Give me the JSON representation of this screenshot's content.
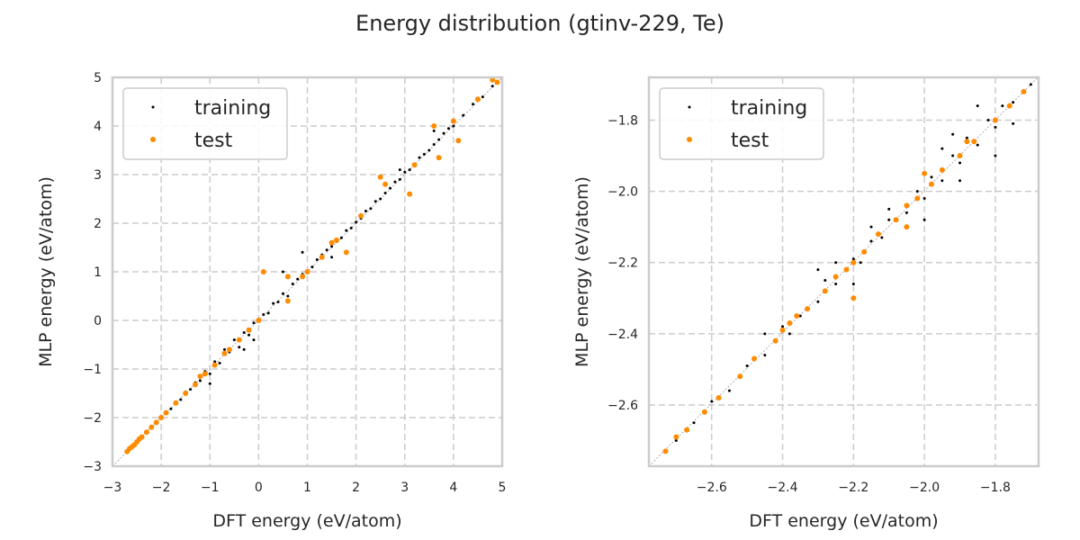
{
  "title": "Energy distribution (gtinv-229, Te)",
  "colors": {
    "training": "#000000",
    "test": "#ff8c00",
    "grid": "#cccccc",
    "frame": "#cccccc"
  },
  "chart_data": [
    {
      "type": "scatter",
      "xlabel": "DFT energy (eV/atom)",
      "ylabel": "MLP energy (eV/atom)",
      "xlim": [
        -3,
        5
      ],
      "ylim": [
        -3,
        5
      ],
      "xticks": [
        -3,
        -2,
        -1,
        0,
        1,
        2,
        3,
        4,
        5
      ],
      "yticks": [
        -3,
        -2,
        -1,
        0,
        1,
        2,
        3,
        4,
        5
      ],
      "xtick_labels": [
        "−3",
        "−2",
        "−1",
        "0",
        "1",
        "2",
        "3",
        "4",
        "5"
      ],
      "ytick_labels": [
        "−3",
        "−2",
        "−1",
        "0",
        "1",
        "2",
        "3",
        "4",
        "5"
      ],
      "grid": true,
      "legend": "upper-left",
      "series": [
        {
          "name": "training",
          "points": [
            [
              -2.7,
              -2.7
            ],
            [
              -2.6,
              -2.62
            ],
            [
              -2.5,
              -2.48
            ],
            [
              -2.4,
              -2.41
            ],
            [
              -2.3,
              -2.28
            ],
            [
              -2.2,
              -2.22
            ],
            [
              -2.1,
              -2.08
            ],
            [
              -2.0,
              -2.02
            ],
            [
              -1.9,
              -1.88
            ],
            [
              -1.8,
              -1.82
            ],
            [
              -1.7,
              -1.68
            ],
            [
              -1.6,
              -1.63
            ],
            [
              -1.5,
              -1.47
            ],
            [
              -1.4,
              -1.42
            ],
            [
              -1.3,
              -1.28
            ],
            [
              -1.2,
              -1.24
            ],
            [
              -1.1,
              -1.05
            ],
            [
              -1.0,
              -1.1
            ],
            [
              -0.9,
              -0.85
            ],
            [
              -0.8,
              -0.88
            ],
            [
              -0.7,
              -0.6
            ],
            [
              -0.6,
              -0.65
            ],
            [
              -0.5,
              -0.4
            ],
            [
              -0.4,
              -0.55
            ],
            [
              -0.3,
              -0.25
            ],
            [
              -0.2,
              -0.3
            ],
            [
              -0.1,
              -0.05
            ],
            [
              0.0,
              0.02
            ],
            [
              0.1,
              0.12
            ],
            [
              0.2,
              0.15
            ],
            [
              0.3,
              0.35
            ],
            [
              0.4,
              0.38
            ],
            [
              0.5,
              0.55
            ],
            [
              0.6,
              0.5
            ],
            [
              0.7,
              0.75
            ],
            [
              0.8,
              0.85
            ],
            [
              0.5,
              1.0
            ],
            [
              0.9,
              0.95
            ],
            [
              1.0,
              1.02
            ],
            [
              1.1,
              1.1
            ],
            [
              1.2,
              1.25
            ],
            [
              1.3,
              1.35
            ],
            [
              1.4,
              1.45
            ],
            [
              1.5,
              1.52
            ],
            [
              1.6,
              1.62
            ],
            [
              1.7,
              1.7
            ],
            [
              1.8,
              1.85
            ],
            [
              1.9,
              1.9
            ],
            [
              2.0,
              2.02
            ],
            [
              2.1,
              2.1
            ],
            [
              2.2,
              2.25
            ],
            [
              2.3,
              2.3
            ],
            [
              2.4,
              2.45
            ],
            [
              2.5,
              2.5
            ],
            [
              2.6,
              2.62
            ],
            [
              2.7,
              2.72
            ],
            [
              2.8,
              2.85
            ],
            [
              2.9,
              2.9
            ],
            [
              3.0,
              3.05
            ],
            [
              3.1,
              3.1
            ],
            [
              3.2,
              3.22
            ],
            [
              3.3,
              3.35
            ],
            [
              3.4,
              3.42
            ],
            [
              3.5,
              3.5
            ],
            [
              3.6,
              3.62
            ],
            [
              3.7,
              3.72
            ],
            [
              3.8,
              3.85
            ],
            [
              3.9,
              3.95
            ],
            [
              4.0,
              4.0
            ],
            [
              4.2,
              4.22
            ],
            [
              4.4,
              4.45
            ],
            [
              4.6,
              4.6
            ],
            [
              4.8,
              4.82
            ],
            [
              4.9,
              4.9
            ],
            [
              -0.3,
              -0.6
            ],
            [
              -0.1,
              -0.4
            ],
            [
              0.9,
              1.4
            ],
            [
              1.5,
              1.3
            ],
            [
              2.9,
              3.1
            ],
            [
              3.6,
              3.9
            ],
            [
              -1.0,
              -1.3
            ]
          ]
        },
        {
          "name": "test",
          "points": [
            [
              -2.7,
              -2.7
            ],
            [
              -2.65,
              -2.64
            ],
            [
              -2.6,
              -2.6
            ],
            [
              -2.55,
              -2.56
            ],
            [
              -2.5,
              -2.5
            ],
            [
              -2.45,
              -2.44
            ],
            [
              -2.4,
              -2.4
            ],
            [
              -2.3,
              -2.3
            ],
            [
              -2.2,
              -2.2
            ],
            [
              -2.1,
              -2.1
            ],
            [
              -2.0,
              -2.0
            ],
            [
              -1.9,
              -1.9
            ],
            [
              -1.7,
              -1.7
            ],
            [
              -1.5,
              -1.5
            ],
            [
              -1.3,
              -1.32
            ],
            [
              -1.2,
              -1.15
            ],
            [
              -1.1,
              -1.1
            ],
            [
              -0.9,
              -0.92
            ],
            [
              -0.7,
              -0.68
            ],
            [
              -0.6,
              -0.6
            ],
            [
              -0.4,
              -0.4
            ],
            [
              -0.2,
              -0.2
            ],
            [
              0.0,
              0.0
            ],
            [
              0.1,
              1.0
            ],
            [
              0.6,
              0.4
            ],
            [
              0.6,
              0.9
            ],
            [
              0.9,
              0.9
            ],
            [
              1.0,
              1.0
            ],
            [
              1.3,
              1.3
            ],
            [
              1.5,
              1.6
            ],
            [
              1.8,
              1.4
            ],
            [
              1.6,
              1.65
            ],
            [
              2.1,
              2.15
            ],
            [
              2.5,
              2.95
            ],
            [
              2.6,
              2.8
            ],
            [
              3.1,
              2.6
            ],
            [
              3.2,
              3.2
            ],
            [
              3.7,
              3.35
            ],
            [
              3.6,
              4.0
            ],
            [
              4.0,
              4.1
            ],
            [
              4.1,
              3.7
            ],
            [
              4.5,
              4.55
            ],
            [
              4.9,
              4.9
            ],
            [
              4.8,
              4.95
            ]
          ]
        }
      ]
    },
    {
      "type": "scatter",
      "xlabel": "DFT energy (eV/atom)",
      "ylabel": "MLP energy (eV/atom)",
      "xlim": [
        -2.777,
        -1.678
      ],
      "ylim": [
        -2.772,
        -1.68
      ],
      "xticks": [
        -2.6,
        -2.4,
        -2.2,
        -2.0,
        -1.8
      ],
      "yticks": [
        -2.6,
        -2.4,
        -2.2,
        -2.0,
        -1.8
      ],
      "xtick_labels": [
        "−2.6",
        "−2.4",
        "−2.2",
        "−2.0",
        "−1.8"
      ],
      "ytick_labels": [
        "−2.6",
        "−2.4",
        "−2.2",
        "−2.0",
        "−1.8"
      ],
      "grid": true,
      "legend": "upper-left",
      "series": [
        {
          "name": "training",
          "points": [
            [
              -2.7,
              -2.7
            ],
            [
              -2.65,
              -2.65
            ],
            [
              -2.6,
              -2.59
            ],
            [
              -2.55,
              -2.56
            ],
            [
              -2.5,
              -2.49
            ],
            [
              -2.45,
              -2.46
            ],
            [
              -2.4,
              -2.38
            ],
            [
              -2.38,
              -2.4
            ],
            [
              -2.35,
              -2.35
            ],
            [
              -2.3,
              -2.31
            ],
            [
              -2.28,
              -2.25
            ],
            [
              -2.25,
              -2.26
            ],
            [
              -2.2,
              -2.19
            ],
            [
              -2.18,
              -2.2
            ],
            [
              -2.15,
              -2.14
            ],
            [
              -2.12,
              -2.13
            ],
            [
              -2.1,
              -2.08
            ],
            [
              -2.05,
              -2.06
            ],
            [
              -2.02,
              -2.0
            ],
            [
              -2.0,
              -2.02
            ],
            [
              -1.98,
              -1.96
            ],
            [
              -1.95,
              -1.97
            ],
            [
              -1.92,
              -1.9
            ],
            [
              -1.9,
              -1.92
            ],
            [
              -1.88,
              -1.85
            ],
            [
              -1.85,
              -1.87
            ],
            [
              -1.82,
              -1.8
            ],
            [
              -1.8,
              -1.82
            ],
            [
              -1.78,
              -1.76
            ],
            [
              -1.75,
              -1.75
            ],
            [
              -1.72,
              -1.72
            ],
            [
              -1.7,
              -1.7
            ],
            [
              -2.3,
              -2.22
            ],
            [
              -2.15,
              -2.1
            ],
            [
              -2.05,
              -2.1
            ],
            [
              -1.9,
              -1.97
            ],
            [
              -1.85,
              -1.76
            ],
            [
              -1.95,
              -1.88
            ],
            [
              -2.45,
              -2.4
            ],
            [
              -2.2,
              -2.26
            ],
            [
              -1.8,
              -1.9
            ],
            [
              -2.1,
              -2.05
            ],
            [
              -2.0,
              -2.08
            ],
            [
              -1.75,
              -1.81
            ],
            [
              -1.92,
              -1.84
            ],
            [
              -2.25,
              -2.2
            ]
          ]
        },
        {
          "name": "test",
          "points": [
            [
              -2.73,
              -2.73
            ],
            [
              -2.7,
              -2.69
            ],
            [
              -2.67,
              -2.67
            ],
            [
              -2.62,
              -2.62
            ],
            [
              -2.58,
              -2.58
            ],
            [
              -2.52,
              -2.52
            ],
            [
              -2.48,
              -2.47
            ],
            [
              -2.42,
              -2.42
            ],
            [
              -2.4,
              -2.39
            ],
            [
              -2.38,
              -2.37
            ],
            [
              -2.36,
              -2.35
            ],
            [
              -2.33,
              -2.33
            ],
            [
              -2.28,
              -2.28
            ],
            [
              -2.25,
              -2.24
            ],
            [
              -2.22,
              -2.22
            ],
            [
              -2.2,
              -2.2
            ],
            [
              -2.17,
              -2.17
            ],
            [
              -2.13,
              -2.12
            ],
            [
              -2.08,
              -2.08
            ],
            [
              -2.05,
              -2.04
            ],
            [
              -2.02,
              -2.02
            ],
            [
              -1.98,
              -1.98
            ],
            [
              -1.95,
              -1.94
            ],
            [
              -1.9,
              -1.9
            ],
            [
              -1.86,
              -1.86
            ],
            [
              -1.8,
              -1.8
            ],
            [
              -1.76,
              -1.76
            ],
            [
              -1.72,
              -1.72
            ],
            [
              -2.2,
              -2.3
            ],
            [
              -2.0,
              -1.95
            ],
            [
              -1.88,
              -1.86
            ],
            [
              -2.05,
              -2.1
            ]
          ]
        }
      ]
    }
  ]
}
